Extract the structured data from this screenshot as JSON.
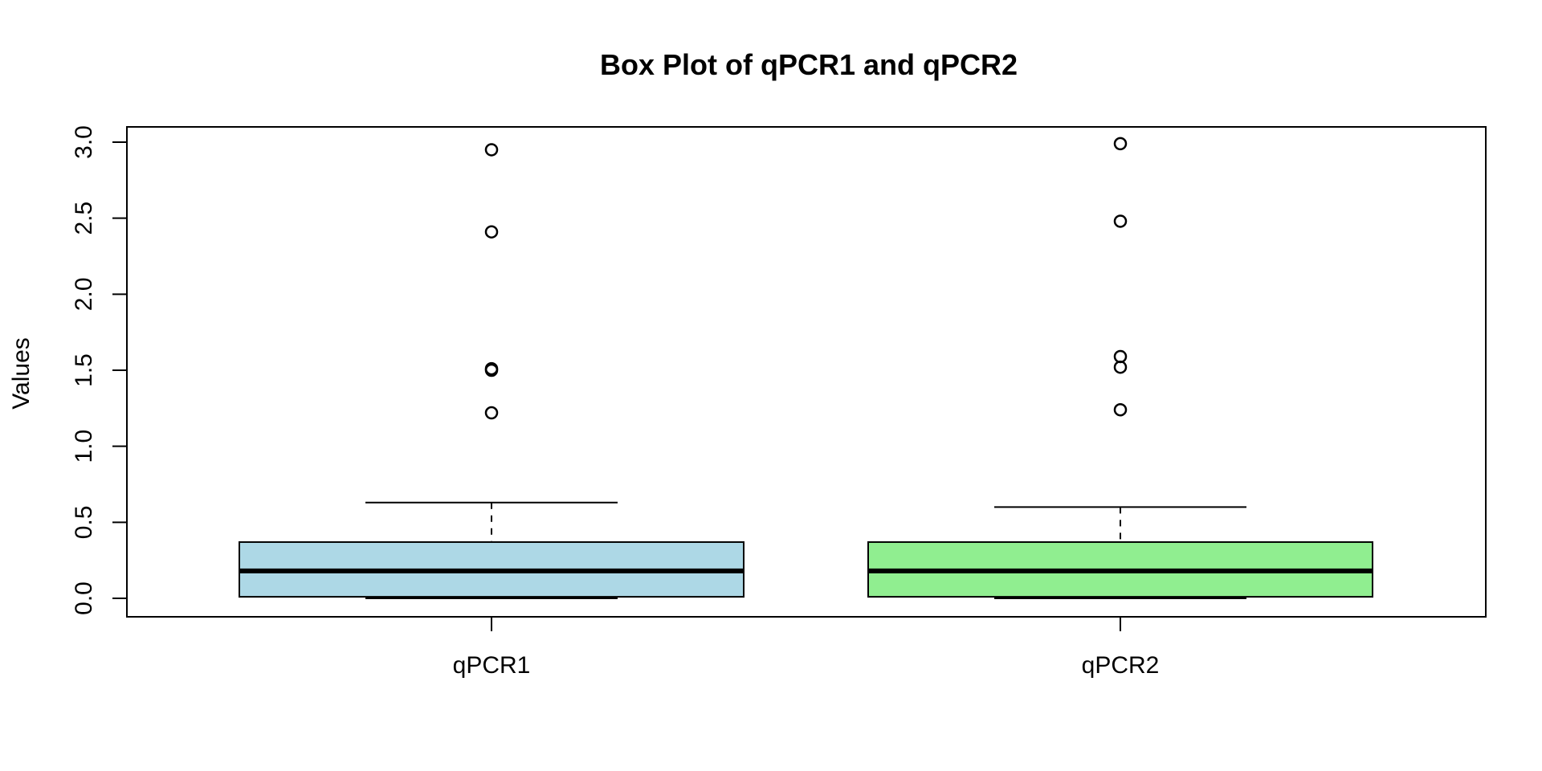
{
  "chart_data": {
    "type": "box",
    "title": "Box Plot of qPCR1 and qPCR2",
    "xlabel": "",
    "ylabel": "Values",
    "ylim": [
      -0.12,
      3.1
    ],
    "yticks": [
      0.0,
      0.5,
      1.0,
      1.5,
      2.0,
      2.5,
      3.0
    ],
    "ytick_labels": [
      "0.0",
      "0.5",
      "1.0",
      "1.5",
      "2.0",
      "2.5",
      "3.0"
    ],
    "grid": false,
    "categories": [
      "qPCR1",
      "qPCR2"
    ],
    "series": [
      {
        "category": "qPCR1",
        "color": "#add8e6",
        "whisker_low": 0.0,
        "q1": 0.01,
        "median": 0.18,
        "q3": 0.37,
        "whisker_high": 0.63,
        "outliers": [
          1.22,
          1.5,
          1.51,
          2.41,
          2.95
        ]
      },
      {
        "category": "qPCR2",
        "color": "#90ee90",
        "whisker_low": 0.0,
        "q1": 0.01,
        "median": 0.18,
        "q3": 0.37,
        "whisker_high": 0.6,
        "outliers": [
          1.24,
          1.52,
          1.59,
          2.48,
          2.99
        ]
      }
    ]
  }
}
